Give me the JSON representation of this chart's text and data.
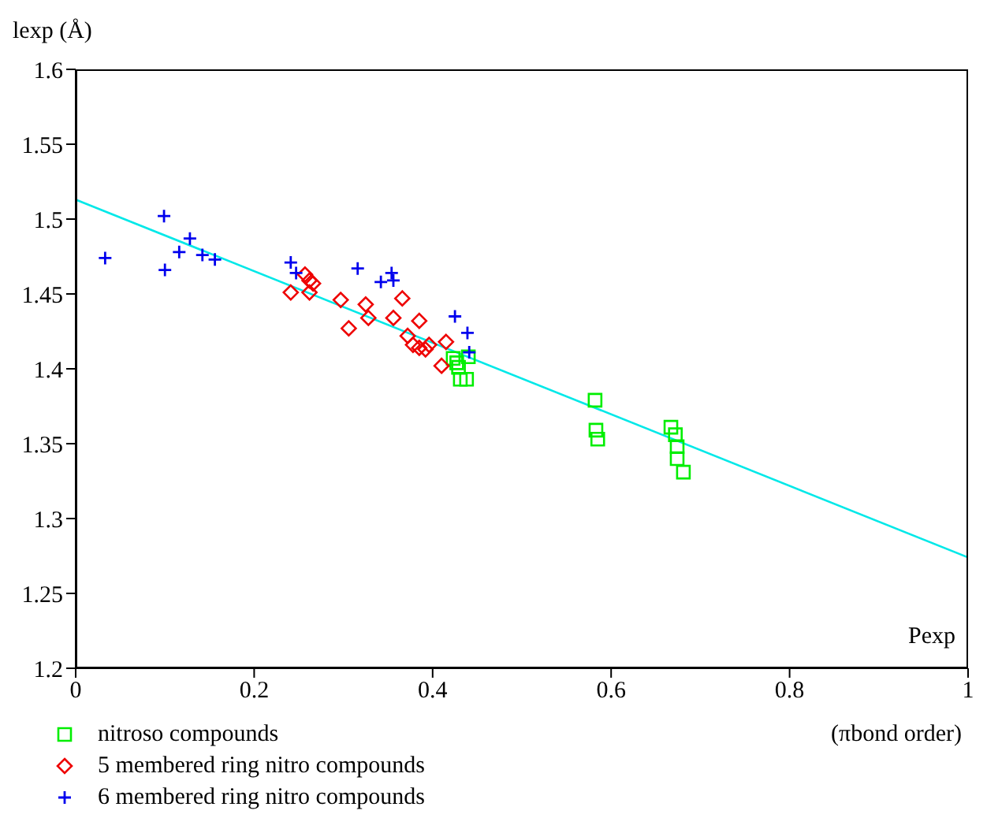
{
  "chart_data": {
    "type": "scatter",
    "ylabel": "lexp (Å)",
    "xlabel": "Pexp",
    "annotations": [
      "(πbond order)"
    ],
    "xlim": [
      0,
      1
    ],
    "xticks": [
      0,
      0.2,
      0.4,
      0.6,
      0.8,
      1
    ],
    "ylim": [
      1.2,
      1.6
    ],
    "yticks": [
      1.2,
      1.25,
      1.3,
      1.35,
      1.4,
      1.45,
      1.5,
      1.55,
      1.6
    ],
    "grid": false,
    "legend": "bottom left",
    "series": [
      {
        "name": "nitroso compounds",
        "color": "#00ee00",
        "marker": "square",
        "x": [
          0.423,
          0.427,
          0.429,
          0.44,
          0.431,
          0.438,
          0.582,
          0.583,
          0.585,
          0.667,
          0.672,
          0.674,
          0.674,
          0.681
        ],
        "values": [
          1.407,
          1.404,
          1.401,
          1.408,
          1.393,
          1.393,
          1.379,
          1.359,
          1.353,
          1.361,
          1.356,
          1.348,
          1.34,
          1.331
        ]
      },
      {
        "name": "5 membered ring nitro compounds",
        "color": "#ee0000",
        "marker": "diamond",
        "x": [
          0.241,
          0.257,
          0.262,
          0.266,
          0.262,
          0.297,
          0.306,
          0.325,
          0.328,
          0.356,
          0.366,
          0.372,
          0.385,
          0.378,
          0.385,
          0.392,
          0.396,
          0.41,
          0.415
        ],
        "values": [
          1.451,
          1.463,
          1.459,
          1.457,
          1.451,
          1.446,
          1.427,
          1.443,
          1.434,
          1.434,
          1.447,
          1.422,
          1.432,
          1.416,
          1.414,
          1.413,
          1.416,
          1.402,
          1.418
        ]
      },
      {
        "name": "6 membered ring nitro compounds",
        "color": "#0000ee",
        "marker": "cross",
        "x": [
          0.033,
          0.099,
          0.1,
          0.116,
          0.128,
          0.142,
          0.156,
          0.241,
          0.247,
          0.316,
          0.342,
          0.354,
          0.356,
          0.425,
          0.439,
          0.441
        ],
        "values": [
          1.474,
          1.502,
          1.466,
          1.478,
          1.487,
          1.476,
          1.473,
          1.471,
          1.464,
          1.467,
          1.458,
          1.464,
          1.459,
          1.435,
          1.424,
          1.411
        ]
      },
      {
        "type": "line",
        "color": "#00e8e8",
        "marker": "none",
        "x": [
          0,
          1
        ],
        "values": [
          1.513,
          1.274
        ]
      }
    ]
  }
}
